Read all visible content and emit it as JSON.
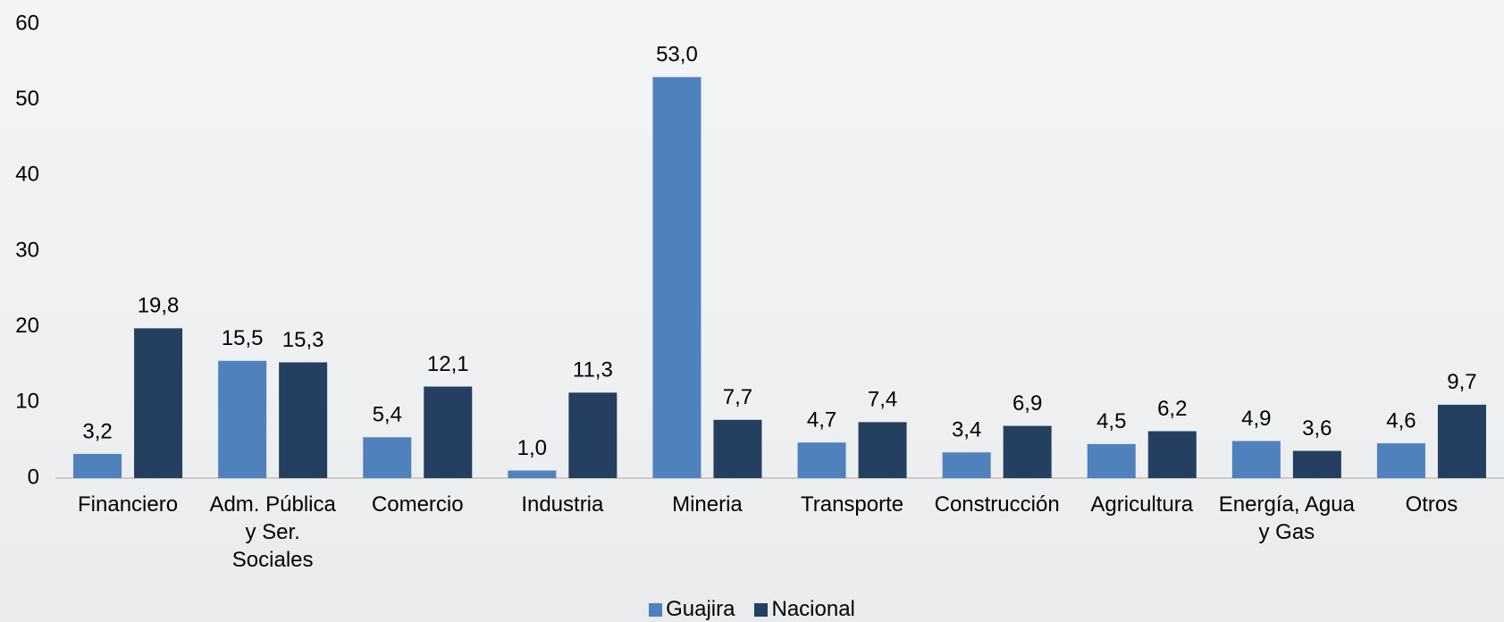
{
  "chart_data": {
    "type": "bar",
    "categories": [
      "Financiero",
      "Adm. Pública y Ser. Sociales",
      "Comercio",
      "Industria",
      "Mineria",
      "Transporte",
      "Construcción",
      "Agricultura",
      "Energía, Agua y Gas",
      "Otros"
    ],
    "series": [
      {
        "name": "Guajira",
        "color": "#4f81bd",
        "values": [
          3.2,
          15.5,
          5.4,
          1.0,
          53.0,
          4.7,
          3.4,
          4.5,
          4.9,
          4.6
        ],
        "value_labels": [
          "3,2",
          "15,5",
          "5,4",
          "1,0",
          "53,0",
          "4,7",
          "3,4",
          "4,5",
          "4,9",
          "4,6"
        ]
      },
      {
        "name": "Nacional",
        "color": "#243f60",
        "values": [
          19.8,
          15.3,
          12.1,
          11.3,
          7.7,
          7.4,
          6.9,
          6.2,
          3.6,
          9.7
        ],
        "value_labels": [
          "19,8",
          "15,3",
          "12,1",
          "11,3",
          "7,7",
          "7,4",
          "6,9",
          "6,2",
          "3,6",
          "9,7"
        ]
      }
    ],
    "ylim": [
      0,
      60
    ],
    "yticks": [
      0,
      10,
      20,
      30,
      40,
      50,
      60
    ],
    "grid": false,
    "legend": "bottom"
  }
}
